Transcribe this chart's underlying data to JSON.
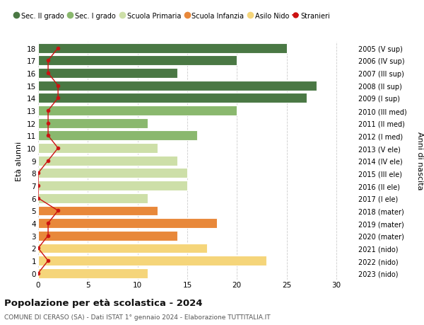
{
  "ages": [
    0,
    1,
    2,
    3,
    4,
    5,
    6,
    7,
    8,
    9,
    10,
    11,
    12,
    13,
    14,
    15,
    16,
    17,
    18
  ],
  "years_labels": [
    "2023 (nido)",
    "2022 (nido)",
    "2021 (nido)",
    "2020 (mater)",
    "2019 (mater)",
    "2018 (mater)",
    "2017 (I ele)",
    "2016 (II ele)",
    "2015 (III ele)",
    "2014 (IV ele)",
    "2013 (V ele)",
    "2012 (I med)",
    "2011 (II med)",
    "2010 (III med)",
    "2009 (I sup)",
    "2008 (II sup)",
    "2007 (III sup)",
    "2006 (IV sup)",
    "2005 (V sup)"
  ],
  "bar_values": [
    11,
    23,
    17,
    14,
    18,
    12,
    11,
    15,
    15,
    14,
    12,
    16,
    11,
    20,
    27,
    28,
    14,
    20,
    25
  ],
  "bar_colors": [
    "#f5d57a",
    "#f5d57a",
    "#f5d57a",
    "#e8883a",
    "#e8883a",
    "#e8883a",
    "#cddfa8",
    "#cddfa8",
    "#cddfa8",
    "#cddfa8",
    "#cddfa8",
    "#8ab86e",
    "#8ab86e",
    "#8ab86e",
    "#4a7844",
    "#4a7844",
    "#4a7844",
    "#4a7844",
    "#4a7844"
  ],
  "stranieri_values": [
    0,
    1,
    0,
    1,
    1,
    2,
    0,
    0,
    0,
    1,
    2,
    1,
    1,
    1,
    2,
    2,
    1,
    1,
    2
  ],
  "legend_labels": [
    "Sec. II grado",
    "Sec. I grado",
    "Scuola Primaria",
    "Scuola Infanzia",
    "Asilo Nido",
    "Stranieri"
  ],
  "legend_colors": [
    "#4a7844",
    "#8ab86e",
    "#cddfa8",
    "#e8883a",
    "#f5d57a",
    "#cc1111"
  ],
  "title_bold": "Popolazione per età scolastica - 2024",
  "subtitle": "COMUNE DI CERASO (SA) - Dati ISTAT 1° gennaio 2024 - Elaborazione TUTTITALIA.IT",
  "ylabel_left": "Età alunni",
  "ylabel_right": "Anni di nascita",
  "xlim": [
    0,
    32
  ],
  "background_color": "#ffffff",
  "grid_color": "#cccccc",
  "bar_height": 0.78
}
